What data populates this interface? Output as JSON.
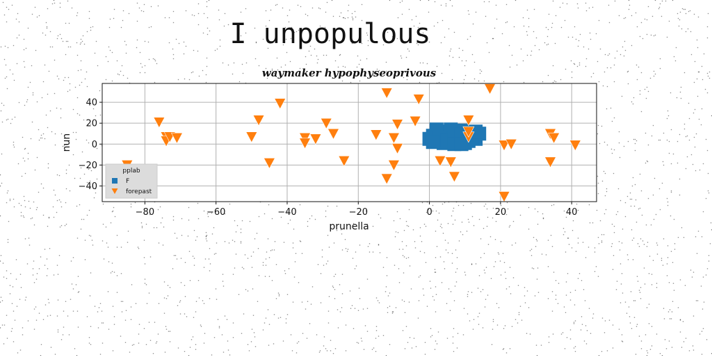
{
  "page_title": "I unpopulous",
  "chart_data": {
    "type": "scatter",
    "title": "waymaker hypophyseoprivous",
    "xlabel": "prunella",
    "ylabel": "nun",
    "xlim": [
      -92,
      47
    ],
    "ylim": [
      -55,
      58
    ],
    "xticks": [
      -80,
      -60,
      -40,
      -20,
      0,
      20,
      40
    ],
    "yticks": [
      -40,
      -20,
      0,
      20,
      40
    ],
    "grid": true,
    "legend": {
      "title": "pplab",
      "placement": "lower-left"
    },
    "series": [
      {
        "name": "F",
        "marker": "square",
        "color": "#1f77b4",
        "points": [
          [
            0,
            5
          ],
          [
            1,
            8
          ],
          [
            2,
            3
          ],
          [
            3,
            12
          ],
          [
            4,
            6
          ],
          [
            5,
            9
          ],
          [
            6,
            2
          ],
          [
            7,
            10
          ],
          [
            8,
            4
          ],
          [
            9,
            13
          ],
          [
            10,
            7
          ],
          [
            11,
            3
          ],
          [
            12,
            11
          ],
          [
            13,
            5
          ],
          [
            14,
            10
          ],
          [
            2,
            14
          ],
          [
            4,
            1
          ],
          [
            6,
            14
          ],
          [
            8,
            8
          ],
          [
            10,
            1
          ],
          [
            12,
            6
          ],
          [
            3,
            6
          ],
          [
            5,
            4
          ],
          [
            7,
            6
          ],
          [
            9,
            9
          ],
          [
            11,
            9
          ],
          [
            13,
            12
          ],
          [
            1,
            2
          ],
          [
            7,
            0
          ],
          [
            9,
            0
          ]
        ]
      },
      {
        "name": "forepast",
        "marker": "triangle-down",
        "color": "#ff7f0e",
        "points": [
          [
            -85,
            -20
          ],
          [
            -76,
            21
          ],
          [
            -74,
            7
          ],
          [
            -74,
            3
          ],
          [
            -73,
            7
          ],
          [
            -71,
            6
          ],
          [
            -50,
            7
          ],
          [
            -48,
            23
          ],
          [
            -45,
            -18
          ],
          [
            -42,
            39
          ],
          [
            -35,
            6
          ],
          [
            -35,
            1
          ],
          [
            -32,
            5
          ],
          [
            -29,
            20
          ],
          [
            -27,
            10
          ],
          [
            -24,
            -16
          ],
          [
            -15,
            9
          ],
          [
            -12,
            49
          ],
          [
            -12,
            -33
          ],
          [
            -10,
            6
          ],
          [
            -10,
            -20
          ],
          [
            -9,
            19
          ],
          [
            -9,
            -4
          ],
          [
            -4,
            22
          ],
          [
            -3,
            43
          ],
          [
            3,
            -16
          ],
          [
            6,
            -17
          ],
          [
            7,
            -31
          ],
          [
            11,
            7
          ],
          [
            11,
            12
          ],
          [
            11,
            23
          ],
          [
            17,
            53
          ],
          [
            21,
            -1
          ],
          [
            21,
            -50
          ],
          [
            23,
            0
          ],
          [
            34,
            10
          ],
          [
            35,
            6
          ],
          [
            34,
            -17
          ],
          [
            41,
            -1
          ]
        ]
      }
    ]
  }
}
